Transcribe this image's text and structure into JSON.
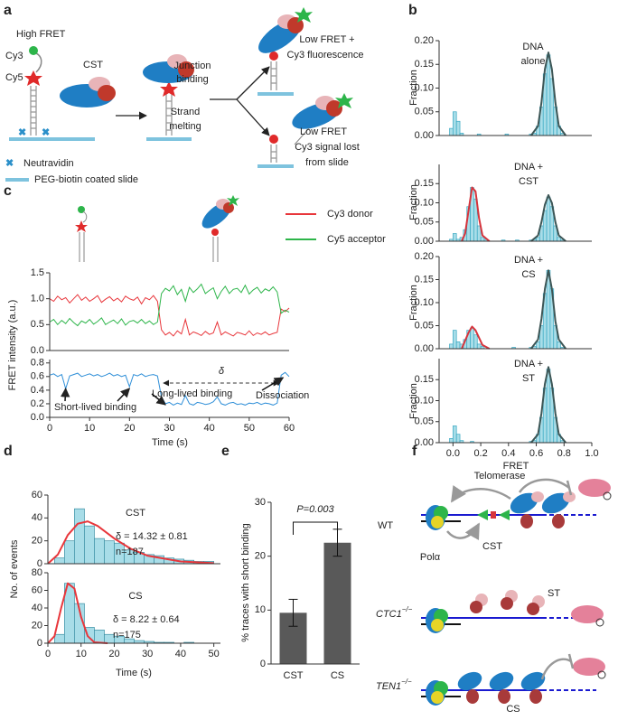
{
  "panel_labels": [
    "a",
    "b",
    "c",
    "d",
    "e",
    "f"
  ],
  "diagram_a": {
    "high_fret": "High FRET",
    "cy3": "Cy3",
    "cy5": "Cy5",
    "cst": "CST",
    "junction_binding": [
      "Junction",
      "binding"
    ],
    "strand_melting": [
      "Strand",
      "melting"
    ],
    "low_fret_fluor": [
      "Low FRET +",
      "Cy3 fluorescence"
    ],
    "low_fret_lost": [
      "Low FRET",
      "Cy3 signal lost",
      "from slide"
    ],
    "neutravidin": "Neutravidin",
    "slide": "PEG-biotin coated slide"
  },
  "diagram_f": {
    "telomerase": "Telomerase",
    "wt": "WT",
    "cst": "CST",
    "pol": "Polα",
    "st": "ST",
    "ctc1": {
      "gene": "CTC1",
      "sup": "−/−"
    },
    "ten1": {
      "gene": "TEN1",
      "sup": "−/−"
    },
    "cs": "CS"
  },
  "chart_data": [
    {
      "type": "histogram",
      "label_lines": [
        "DNA",
        "alone"
      ],
      "ylabel": "Fraction",
      "color": "#a8dde8",
      "edge_color": "#3aa9c3",
      "xlim": [
        -0.1,
        1.0
      ],
      "ylim": [
        0,
        0.2
      ],
      "yticks": [
        {
          "value": 0,
          "label": "0.00"
        },
        0.05,
        {
          "value": 0.1,
          "label": "0.10"
        },
        0.15,
        {
          "value": 0.2,
          "label": "0.20"
        }
      ],
      "bins": [
        -0.025,
        0,
        0.025,
        0.05,
        0.075,
        0.1,
        0.125,
        0.15,
        0.175,
        0.2,
        0.225,
        0.25,
        0.275,
        0.3,
        0.325,
        0.35,
        0.375,
        0.4,
        0.425,
        0.45,
        0.475,
        0.5,
        0.525,
        0.55,
        0.575,
        0.6,
        0.625,
        0.65,
        0.675,
        0.7,
        0.725,
        0.75,
        0.775,
        0.8,
        0.825,
        0.85,
        0.875
      ],
      "values": [
        0.015,
        0.05,
        0.03,
        0.005,
        0,
        0,
        0,
        0,
        0.003,
        0,
        0,
        0,
        0,
        0,
        0,
        0,
        0.003,
        0,
        0,
        0,
        0,
        0,
        0,
        0.003,
        0.005,
        0.02,
        0.06,
        0.13,
        0.17,
        0.12,
        0.06,
        0.02,
        0.005,
        0,
        0,
        0
      ],
      "fit": [
        {
          "color": "#3d5656",
          "x": [
            0.5625,
            0.6125,
            0.6375,
            0.6625,
            0.6875,
            0.7125,
            0.7375,
            0.7625,
            0.8125
          ],
          "values": [
            0,
            0.02,
            0.07,
            0.14,
            0.175,
            0.14,
            0.07,
            0.02,
            0
          ]
        }
      ]
    },
    {
      "type": "histogram",
      "label_lines": [
        "DNA +",
        "CST"
      ],
      "ylabel": "Fraction",
      "color": "#a8dde8",
      "edge_color": "#3aa9c3",
      "xlim": [
        -0.1,
        1.0
      ],
      "ylim": [
        0,
        0.2
      ],
      "yticks": [
        {
          "value": 0,
          "label": "0.00"
        },
        0.05,
        {
          "value": 0.1,
          "label": "0.10"
        },
        0.15
      ],
      "bins": [
        -0.025,
        0,
        0.025,
        0.05,
        0.075,
        0.1,
        0.125,
        0.15,
        0.175,
        0.2,
        0.225,
        0.25,
        0.275,
        0.3,
        0.325,
        0.35,
        0.375,
        0.4,
        0.425,
        0.45,
        0.475,
        0.5,
        0.525,
        0.55,
        0.575,
        0.6,
        0.625,
        0.65,
        0.675,
        0.7,
        0.725,
        0.75,
        0.775,
        0.8,
        0.825,
        0.85,
        0.875
      ],
      "values": [
        0.005,
        0.02,
        0.005,
        0.01,
        0.03,
        0.09,
        0.14,
        0.11,
        0.04,
        0.01,
        0.005,
        0,
        0,
        0,
        0,
        0.003,
        0,
        0,
        0,
        0.003,
        0,
        0,
        0,
        0.003,
        0.005,
        0.01,
        0.04,
        0.08,
        0.115,
        0.09,
        0.04,
        0.01,
        0.003,
        0,
        0,
        0
      ],
      "fit": [
        {
          "color": "#3d5656",
          "x": [
            0.5625,
            0.6125,
            0.6375,
            0.6625,
            0.6875,
            0.7125,
            0.7375,
            0.7625,
            0.8125
          ],
          "values": [
            0,
            0.015,
            0.05,
            0.095,
            0.12,
            0.1,
            0.05,
            0.015,
            0
          ]
        },
        {
          "color": "#d6343c",
          "x": [
            0.0625,
            0.0875,
            0.1125,
            0.1375,
            0.1625,
            0.1875,
            0.2125,
            0.2625
          ],
          "values": [
            0,
            0.02,
            0.08,
            0.14,
            0.13,
            0.06,
            0.015,
            0
          ]
        }
      ]
    },
    {
      "type": "histogram",
      "label_lines": [
        "DNA +",
        "CS"
      ],
      "ylabel": "Fraction",
      "color": "#a8dde8",
      "edge_color": "#3aa9c3",
      "xlim": [
        -0.1,
        1.0
      ],
      "ylim": [
        0,
        0.2
      ],
      "yticks": [
        {
          "value": 0,
          "label": "0.00"
        },
        0.05,
        {
          "value": 0.1,
          "label": "0.10"
        },
        0.15,
        {
          "value": 0.2,
          "label": "0.20"
        }
      ],
      "bins": [
        -0.025,
        0,
        0.025,
        0.05,
        0.075,
        0.1,
        0.125,
        0.15,
        0.175,
        0.2,
        0.225,
        0.25,
        0.275,
        0.3,
        0.325,
        0.35,
        0.375,
        0.4,
        0.425,
        0.45,
        0.475,
        0.5,
        0.525,
        0.55,
        0.575,
        0.6,
        0.625,
        0.65,
        0.675,
        0.7,
        0.725,
        0.75,
        0.775,
        0.8,
        0.825,
        0.85,
        0.875
      ],
      "values": [
        0.01,
        0.04,
        0.015,
        0.01,
        0.02,
        0.04,
        0.045,
        0.03,
        0.01,
        0.005,
        0,
        0,
        0,
        0,
        0,
        0,
        0,
        0,
        0.003,
        0,
        0,
        0,
        0,
        0.003,
        0.005,
        0.015,
        0.05,
        0.12,
        0.17,
        0.13,
        0.05,
        0.015,
        0.003,
        0,
        0,
        0
      ],
      "fit": [
        {
          "color": "#3d5656",
          "x": [
            0.5625,
            0.6125,
            0.6375,
            0.6625,
            0.6875,
            0.7125,
            0.7375,
            0.7625,
            0.8125
          ],
          "values": [
            0,
            0.02,
            0.065,
            0.13,
            0.17,
            0.13,
            0.06,
            0.02,
            0
          ]
        },
        {
          "color": "#d6343c",
          "x": [
            0.0625,
            0.1125,
            0.1375,
            0.1625,
            0.2125,
            0.2625
          ],
          "values": [
            0,
            0.035,
            0.048,
            0.04,
            0.008,
            0
          ]
        }
      ]
    },
    {
      "type": "histogram",
      "label_lines": [
        "DNA +",
        "ST"
      ],
      "ylabel": "Fraction",
      "xlabel": "FRET",
      "color": "#a8dde8",
      "edge_color": "#3aa9c3",
      "xlim": [
        -0.1,
        1.0
      ],
      "ylim": [
        0,
        0.2
      ],
      "yticks": [
        {
          "value": 0,
          "label": "0.00"
        },
        0.05,
        {
          "value": 0.1,
          "label": "0.10"
        },
        0.15
      ],
      "xticks": [
        {
          "value": 0,
          "label": "0.0"
        },
        0.2,
        0.4,
        0.6,
        0.8,
        {
          "value": 1,
          "label": "1.0"
        }
      ],
      "bins": [
        -0.025,
        0,
        0.025,
        0.05,
        0.075,
        0.1,
        0.125,
        0.15,
        0.175,
        0.2,
        0.225,
        0.25,
        0.275,
        0.3,
        0.325,
        0.35,
        0.375,
        0.4,
        0.425,
        0.45,
        0.475,
        0.5,
        0.525,
        0.55,
        0.575,
        0.6,
        0.625,
        0.65,
        0.675,
        0.7,
        0.725,
        0.75,
        0.775,
        0.8,
        0.825,
        0.85,
        0.875
      ],
      "values": [
        0.01,
        0.04,
        0.02,
        0.005,
        0,
        0,
        0.003,
        0,
        0,
        0,
        0,
        0,
        0,
        0,
        0,
        0,
        0,
        0,
        0,
        0,
        0,
        0,
        0,
        0.003,
        0.005,
        0.02,
        0.06,
        0.13,
        0.175,
        0.13,
        0.06,
        0.02,
        0.005,
        0,
        0,
        0
      ],
      "fit": [
        {
          "color": "#3d5656",
          "x": [
            0.5625,
            0.6125,
            0.6375,
            0.6625,
            0.6875,
            0.7125,
            0.7375,
            0.7625,
            0.8125
          ],
          "values": [
            0,
            0.02,
            0.07,
            0.14,
            0.18,
            0.14,
            0.07,
            0.02,
            0
          ]
        }
      ]
    },
    {
      "type": "line",
      "ylabel": "FRET intensity (a.u.)",
      "xlim": [
        0,
        60
      ],
      "ylim": [
        0,
        1.5
      ],
      "yticks": [
        {
          "value": 0,
          "label": "0.0"
        },
        0.5,
        {
          "value": 1,
          "label": "1.0"
        },
        1.5
      ],
      "x": [
        0,
        1,
        2,
        3,
        4,
        5,
        6,
        7,
        8,
        9,
        10,
        11,
        12,
        13,
        14,
        15,
        16,
        17,
        18,
        19,
        20,
        21,
        22,
        23,
        24,
        25,
        26,
        27,
        28,
        29,
        30,
        31,
        32,
        33,
        34,
        35,
        36,
        37,
        38,
        39,
        40,
        41,
        42,
        43,
        44,
        45,
        46,
        47,
        48,
        49,
        50,
        51,
        52,
        53,
        54,
        55,
        56,
        57,
        58,
        59,
        60
      ],
      "series": [
        {
          "name": "Cy3 donor",
          "color": "#e8363b",
          "values": [
            1.0,
            0.95,
            1.05,
            0.98,
            1.02,
            0.92,
            1.0,
            1.08,
            0.97,
            1.03,
            0.95,
            1.0,
            1.06,
            0.93,
            0.99,
            1.04,
            0.96,
            1.01,
            0.94,
            1.05,
            1.0,
            0.97,
            1.03,
            0.9,
            1.02,
            0.98,
            1.06,
            0.95,
            0.4,
            0.3,
            0.35,
            0.28,
            0.38,
            0.32,
            0.6,
            0.3,
            0.36,
            0.33,
            0.29,
            0.37,
            0.31,
            0.34,
            0.55,
            0.3,
            0.36,
            0.32,
            0.28,
            0.35,
            0.33,
            0.3,
            0.38,
            0.29,
            0.34,
            0.31,
            0.36,
            0.3,
            0.33,
            0.35,
            0.8,
            0.75,
            0.82
          ]
        },
        {
          "name": "Cy5 acceptor",
          "color": "#2db54a",
          "values": [
            0.55,
            0.6,
            0.5,
            0.58,
            0.52,
            0.62,
            0.54,
            0.48,
            0.57,
            0.53,
            0.6,
            0.51,
            0.56,
            0.63,
            0.5,
            0.55,
            0.59,
            0.52,
            0.61,
            0.49,
            0.56,
            0.58,
            0.53,
            0.6,
            0.52,
            0.57,
            0.5,
            0.55,
            1.1,
            1.2,
            1.15,
            1.25,
            1.08,
            1.18,
            0.95,
            1.22,
            1.12,
            1.19,
            1.28,
            1.1,
            1.16,
            1.21,
            1.0,
            1.14,
            1.24,
            1.1,
            1.18,
            1.2,
            1.12,
            1.26,
            1.09,
            1.17,
            1.22,
            1.11,
            1.19,
            1.15,
            1.23,
            1.13,
            0.72,
            0.78,
            0.74
          ]
        }
      ]
    },
    {
      "type": "line",
      "xlabel": "Time (s)",
      "xlim": [
        0,
        60
      ],
      "ylim": [
        0,
        0.85
      ],
      "yticks": [
        {
          "value": 0,
          "label": "0.0"
        },
        0.2,
        0.4,
        0.6,
        0.8
      ],
      "xticks": [
        0,
        10,
        20,
        30,
        40,
        50,
        60
      ],
      "annotations": {
        "delta": "δ",
        "long": "Long-lived binding",
        "short": "Short-lived binding",
        "dissociation": "Dissociation"
      },
      "x": [
        0,
        1,
        2,
        3,
        4,
        5,
        6,
        7,
        8,
        9,
        10,
        11,
        12,
        13,
        14,
        15,
        16,
        17,
        18,
        19,
        20,
        21,
        22,
        23,
        24,
        25,
        26,
        27,
        28,
        29,
        30,
        31,
        32,
        33,
        34,
        35,
        36,
        37,
        38,
        39,
        40,
        41,
        42,
        43,
        44,
        45,
        46,
        47,
        48,
        49,
        50,
        51,
        52,
        53,
        54,
        55,
        56,
        57,
        58,
        59,
        60
      ],
      "series": [
        {
          "color": "#2f8fd8",
          "values": [
            0.62,
            0.64,
            0.6,
            0.63,
            0.42,
            0.61,
            0.63,
            0.65,
            0.6,
            0.62,
            0.64,
            0.61,
            0.63,
            0.6,
            0.62,
            0.65,
            0.61,
            0.63,
            0.6,
            0.62,
            0.45,
            0.63,
            0.61,
            0.64,
            0.6,
            0.62,
            0.63,
            0.61,
            0.3,
            0.2,
            0.22,
            0.18,
            0.21,
            0.19,
            0.32,
            0.2,
            0.18,
            0.22,
            0.21,
            0.19,
            0.2,
            0.23,
            0.3,
            0.2,
            0.18,
            0.21,
            0.22,
            0.19,
            0.2,
            0.18,
            0.21,
            0.2,
            0.22,
            0.19,
            0.21,
            0.2,
            0.18,
            0.21,
            0.62,
            0.66,
            0.6
          ]
        }
      ]
    },
    {
      "type": "histogram",
      "label": "CST",
      "stats": [
        "δ = 14.32 ± 0.81",
        "n=187"
      ],
      "ylabel": "No. of events",
      "color": "#a8dde8",
      "edge_color": "#3a8fa3",
      "xlim": [
        0,
        52
      ],
      "ylim": [
        0,
        60
      ],
      "yticks": [
        0,
        20,
        40,
        60
      ],
      "bins": [
        2,
        5,
        8,
        11,
        14,
        17,
        20,
        23,
        26,
        29,
        32,
        35,
        38,
        41,
        44,
        47,
        50
      ],
      "values": [
        5,
        20,
        48,
        33,
        22,
        20,
        18,
        12,
        10,
        8,
        7,
        5,
        4,
        3,
        2,
        2
      ],
      "fit": [
        {
          "color": "#e8363b",
          "x": [
            0,
            3,
            6,
            9,
            12,
            15,
            20,
            25,
            30,
            40,
            50
          ],
          "values": [
            0,
            8,
            25,
            35,
            37,
            33,
            22,
            13,
            7,
            2,
            0.5
          ]
        }
      ]
    },
    {
      "type": "histogram",
      "label": "CS",
      "stats": [
        "δ = 8.22 ± 0.64",
        "n=175"
      ],
      "xlabel": "Time (s)",
      "color": "#a8dde8",
      "edge_color": "#3a8fa3",
      "xlim": [
        0,
        52
      ],
      "ylim": [
        0,
        80
      ],
      "yticks": [
        0,
        20,
        40,
        60,
        80
      ],
      "xticks": [
        0,
        10,
        20,
        30,
        40,
        50
      ],
      "bins": [
        2,
        5,
        8,
        11,
        14,
        17,
        20,
        23,
        26,
        29,
        32,
        35,
        38,
        41,
        44,
        47
      ],
      "values": [
        10,
        68,
        45,
        18,
        15,
        10,
        8,
        5,
        3,
        2,
        1,
        1,
        0,
        1,
        0
      ],
      "fit": [
        {
          "color": "#e8363b",
          "x": [
            0,
            2,
            4,
            6,
            8,
            10,
            12,
            14,
            18
          ],
          "values": [
            0,
            8,
            40,
            68,
            62,
            30,
            8,
            1,
            0
          ]
        }
      ]
    },
    {
      "type": "bar",
      "ylabel": "% traces with short binding",
      "annotation": "P=0.003",
      "color": "#595959",
      "categories": [
        "CST",
        "CS"
      ],
      "values": [
        9.5,
        22.5
      ],
      "errors": [
        2.5,
        2.5
      ],
      "ylim": [
        0,
        30
      ],
      "yticks": [
        0,
        10,
        20,
        30
      ]
    }
  ]
}
